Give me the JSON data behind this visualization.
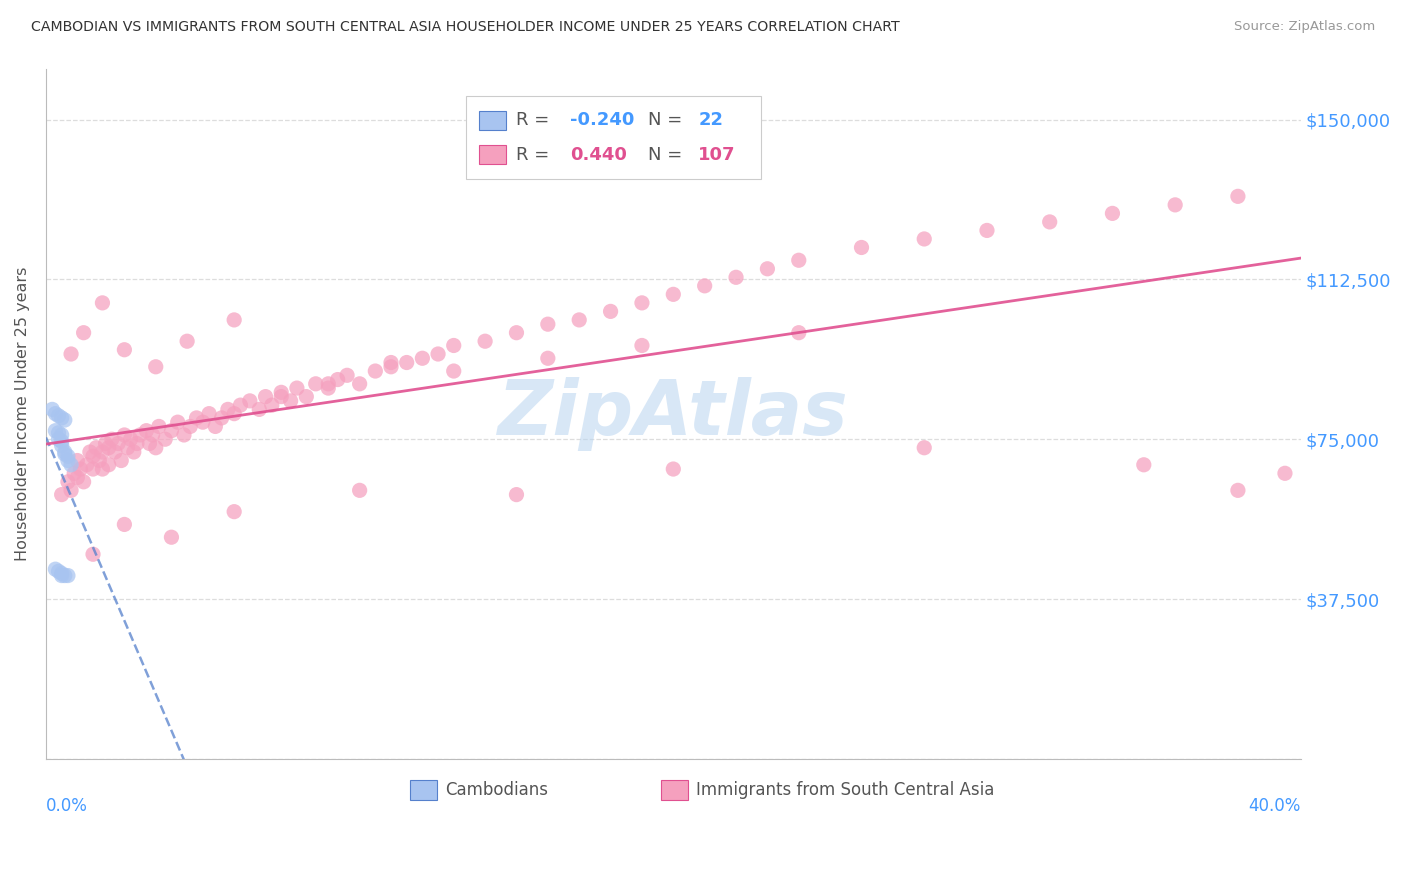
{
  "title": "CAMBODIAN VS IMMIGRANTS FROM SOUTH CENTRAL ASIA HOUSEHOLDER INCOME UNDER 25 YEARS CORRELATION CHART",
  "source": "Source: ZipAtlas.com",
  "ylabel": "Householder Income Under 25 years",
  "y_ticks": [
    0,
    37500,
    75000,
    112500,
    150000
  ],
  "y_tick_labels": [
    "",
    "$37,500",
    "$75,000",
    "$112,500",
    "$150,000"
  ],
  "x_range": [
    0.0,
    0.4
  ],
  "y_range": [
    0,
    162000
  ],
  "legend1_R": "-0.240",
  "legend1_N": "22",
  "legend2_R": "0.440",
  "legend2_N": "107",
  "cam_color_face": "#a8c4f0",
  "cam_color_edge": "#5580cc",
  "imm_color_face": "#f5a0be",
  "imm_color_edge": "#e05090",
  "cam_line_color": "#5580cc",
  "imm_line_color": "#e05090",
  "tick_color": "#4499ff",
  "grid_color": "#dddddd",
  "bg_color": "#ffffff",
  "title_color": "#333333",
  "watermark_color": "#b8d4f0",
  "watermark_alpha": 0.55,
  "label_bottom_left": "0.0%",
  "label_bottom_right": "40.0%",
  "label_cam": "Cambodians",
  "label_imm": "Immigrants from South Central Asia",
  "cam_scatter_x": [
    0.002,
    0.003,
    0.004,
    0.005,
    0.006,
    0.003,
    0.004,
    0.005,
    0.004,
    0.005,
    0.005,
    0.006,
    0.006,
    0.007,
    0.007,
    0.008,
    0.003,
    0.004,
    0.005,
    0.005,
    0.006,
    0.007
  ],
  "cam_scatter_y": [
    82000,
    81000,
    80500,
    80000,
    79500,
    77000,
    76500,
    76000,
    75000,
    74500,
    73500,
    72000,
    71500,
    71000,
    70000,
    69000,
    44500,
    44000,
    43500,
    43000,
    43000,
    43000
  ],
  "imm_scatter_x": [
    0.005,
    0.007,
    0.008,
    0.009,
    0.01,
    0.01,
    0.011,
    0.012,
    0.013,
    0.014,
    0.015,
    0.015,
    0.016,
    0.017,
    0.018,
    0.018,
    0.019,
    0.02,
    0.02,
    0.021,
    0.022,
    0.023,
    0.024,
    0.025,
    0.026,
    0.027,
    0.028,
    0.029,
    0.03,
    0.032,
    0.033,
    0.034,
    0.035,
    0.036,
    0.038,
    0.04,
    0.042,
    0.044,
    0.046,
    0.048,
    0.05,
    0.052,
    0.054,
    0.056,
    0.058,
    0.06,
    0.062,
    0.065,
    0.068,
    0.07,
    0.072,
    0.075,
    0.078,
    0.08,
    0.083,
    0.086,
    0.09,
    0.093,
    0.096,
    0.1,
    0.105,
    0.11,
    0.115,
    0.12,
    0.125,
    0.13,
    0.14,
    0.15,
    0.16,
    0.17,
    0.18,
    0.19,
    0.2,
    0.21,
    0.22,
    0.23,
    0.24,
    0.26,
    0.28,
    0.3,
    0.32,
    0.34,
    0.36,
    0.38,
    0.008,
    0.012,
    0.018,
    0.025,
    0.035,
    0.045,
    0.06,
    0.075,
    0.09,
    0.11,
    0.13,
    0.16,
    0.19,
    0.24,
    0.015,
    0.025,
    0.04,
    0.06,
    0.1,
    0.15,
    0.2,
    0.28,
    0.35,
    0.38,
    0.395
  ],
  "imm_scatter_y": [
    62000,
    65000,
    63000,
    67000,
    66000,
    70000,
    68000,
    65000,
    69000,
    72000,
    71000,
    68000,
    73000,
    70000,
    72000,
    68000,
    74000,
    73000,
    69000,
    75000,
    72000,
    74000,
    70000,
    76000,
    73000,
    75000,
    72000,
    74000,
    76000,
    77000,
    74000,
    76000,
    73000,
    78000,
    75000,
    77000,
    79000,
    76000,
    78000,
    80000,
    79000,
    81000,
    78000,
    80000,
    82000,
    81000,
    83000,
    84000,
    82000,
    85000,
    83000,
    86000,
    84000,
    87000,
    85000,
    88000,
    87000,
    89000,
    90000,
    88000,
    91000,
    92000,
    93000,
    94000,
    95000,
    97000,
    98000,
    100000,
    102000,
    103000,
    105000,
    107000,
    109000,
    111000,
    113000,
    115000,
    117000,
    120000,
    122000,
    124000,
    126000,
    128000,
    130000,
    132000,
    95000,
    100000,
    107000,
    96000,
    92000,
    98000,
    103000,
    85000,
    88000,
    93000,
    91000,
    94000,
    97000,
    100000,
    48000,
    55000,
    52000,
    58000,
    63000,
    62000,
    68000,
    73000,
    69000,
    63000,
    67000
  ]
}
